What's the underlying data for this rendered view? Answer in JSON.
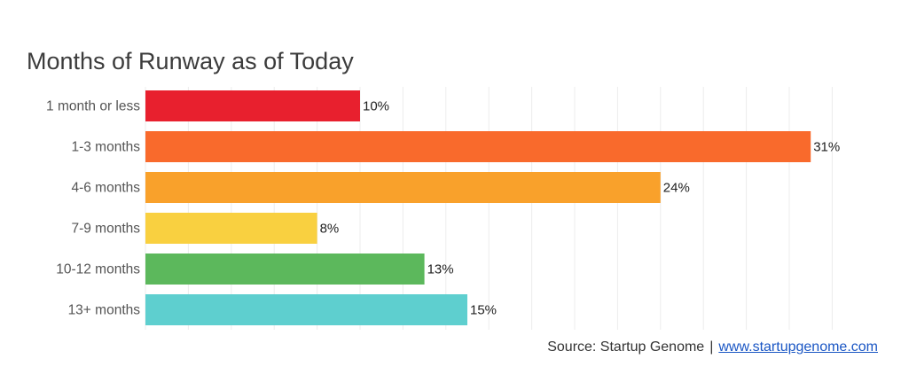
{
  "chart_data": {
    "type": "bar",
    "orientation": "horizontal",
    "title": "Months of Runway as of Today",
    "categories": [
      "1 month or less",
      "1-3 months",
      "4-6 months",
      "7-9 months",
      "10-12 months",
      "13+ months"
    ],
    "values": [
      10,
      31,
      24,
      8,
      13,
      15
    ],
    "value_labels": [
      "10%",
      "31%",
      "24%",
      "8%",
      "13%",
      "15%"
    ],
    "colors": [
      "#e8202e",
      "#f96a2c",
      "#f9a12b",
      "#f9d040",
      "#5cb85c",
      "#5ecfcf"
    ],
    "xlim": [
      0,
      32
    ],
    "grid": true,
    "legend": "none"
  },
  "source": {
    "prefix": "Source: Startup Genome",
    "separator": "|",
    "link_text": "www.startupgenome.com"
  }
}
